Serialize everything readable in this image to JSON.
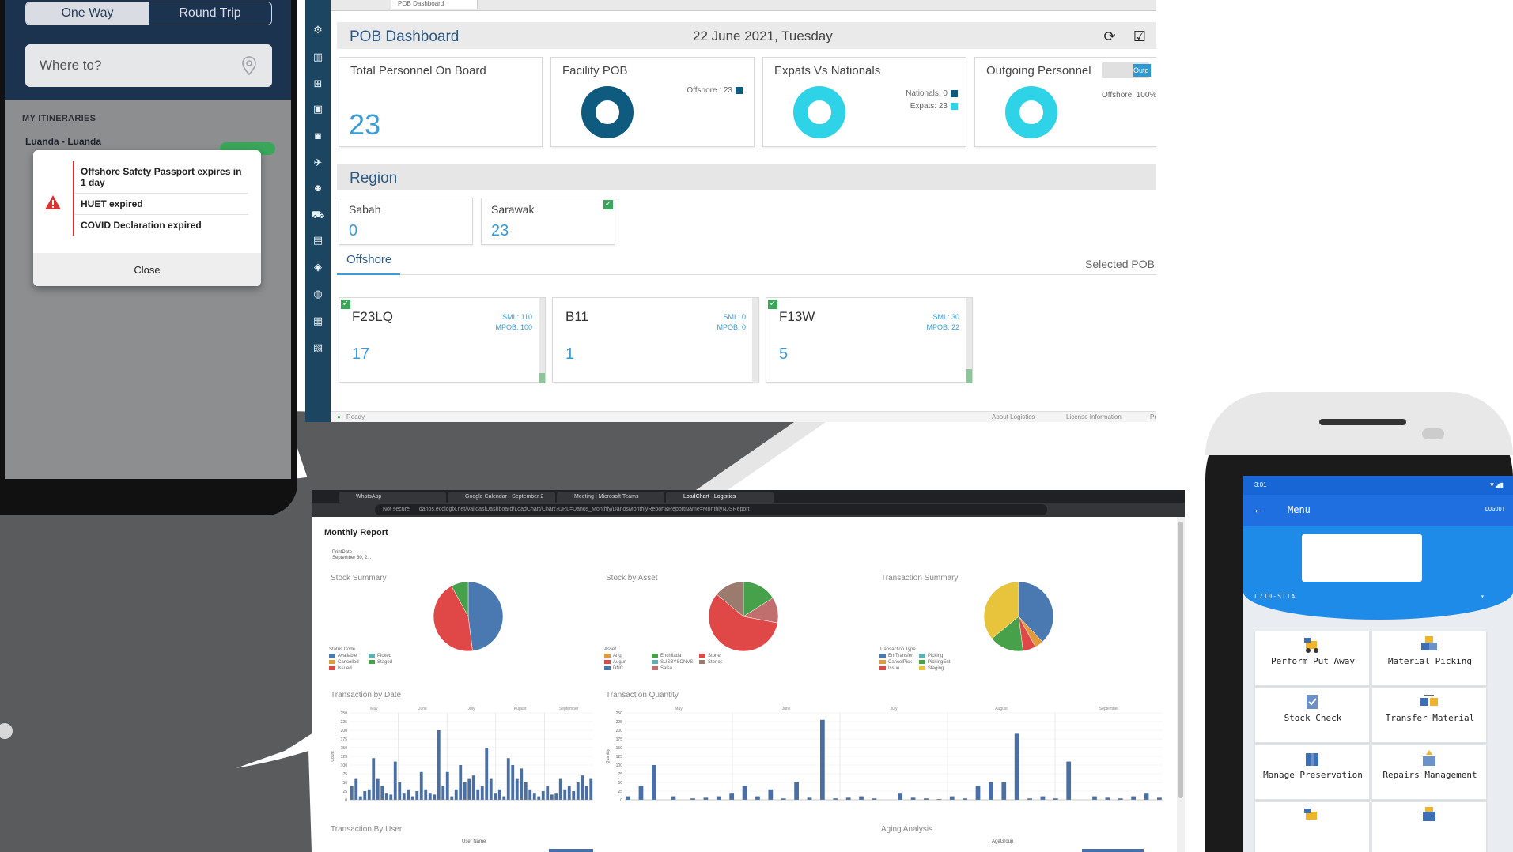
{
  "phone": {
    "toggle": {
      "one_way": "One Way",
      "round_trip": "Round Trip"
    },
    "where_placeholder": "Where to?",
    "section": "MY ITINERARIES",
    "itinerary": "Luanda - Luanda",
    "alerts": [
      "Offshore Safety Passport expires in 1 day",
      "HUET expired",
      "COVID Declaration expired"
    ],
    "close_label": "Close"
  },
  "pob": {
    "tab_label": "POB Dashboard",
    "title": "POB Dashboard",
    "date": "22 June 2021, Tuesday",
    "cards": {
      "total": {
        "label": "Total Personnel On Board",
        "value": "23"
      },
      "facility": {
        "label": "Facility POB",
        "legend": "Offshore : 23"
      },
      "expats": {
        "label": "Expats Vs Nationals",
        "legend_nationals": "Nationals: 0",
        "legend_expats": "Expats: 23"
      },
      "outgoing": {
        "label": "Outgoing Personnel",
        "toggle_label": "Outg",
        "legend": "Offshore: 100%"
      }
    },
    "region_title": "Region",
    "regions": [
      {
        "name": "Sabah",
        "value": "0"
      },
      {
        "name": "Sarawak",
        "value": "23"
      }
    ],
    "tab_offshore": "Offshore",
    "selected_pob": "Selected POB",
    "facilities": [
      {
        "name": "F23LQ",
        "sml": "SML: 110",
        "mpob": "MPOB: 100",
        "value": "17",
        "fill": 0.12
      },
      {
        "name": "B11",
        "sml": "SML: 0",
        "mpob": "MPOB: 0",
        "value": "1",
        "fill": 0
      },
      {
        "name": "F13W",
        "sml": "SML: 30",
        "mpob": "MPOB: 22",
        "value": "5",
        "fill": 0.17
      }
    ],
    "footer": {
      "status": "Ready",
      "links": [
        "About Logistics",
        "License Information",
        "Privacy S"
      ]
    }
  },
  "browser": {
    "tabs": [
      "WhatsApp",
      "Google Calendar - September 2",
      "Meeting | Microsoft Teams",
      "LoadChart - Logistics"
    ],
    "url_prefix": "Not secure",
    "url": "danos.ecologix.net/ValidasiDashboard/LoadChart/Chart?URL=Danos_Monthly/DanosMonthlyReport&ReportName=MonthlyNJSReport",
    "title": "Monthly Report",
    "print_date_label": "PrintDate",
    "print_date": "September 30, 2...",
    "sections": {
      "stock_summary": "Stock Summary",
      "stock_by_asset": "Stock by Asset",
      "transaction_summary": "Transaction Summary",
      "transaction_by_date": "Transaction by Date",
      "transaction_quantity": "Transaction Quantity",
      "transaction_by_user": "Transaction By User",
      "aging_analysis": "Aging Analysis"
    },
    "by_user_axis": "User Name",
    "aging_axis": "AgeGroup",
    "legends": {
      "stock_summary": {
        "title": "Status Code",
        "items": [
          "Available",
          "Cancelled",
          "Issued",
          "Picked",
          "Staged"
        ]
      },
      "stock_by_asset": {
        "title": "Asset",
        "items": [
          "Ang",
          "Augur",
          "DNC",
          "Enchilada",
          "SUSBYSONVS",
          "Salsa",
          "Stone",
          "Stones"
        ]
      },
      "transaction_summary": {
        "title": "Transaction Type",
        "items": [
          "EntTransfer",
          "CancelPick",
          "Issue",
          "Picking",
          "PickingEnt",
          "Staging"
        ]
      }
    },
    "month_labels_date": [
      "May",
      "June",
      "July",
      "August",
      "September"
    ],
    "month_labels_qty": [
      "May",
      "June",
      "July",
      "August",
      "September"
    ],
    "yaxis_date": "Count",
    "yaxis_qty": "Quantity"
  },
  "device": {
    "status_time": "3:01",
    "menu_title": "Menu",
    "logout": "LOGOUT",
    "select_value": "L710-STIA",
    "tiles": [
      "Perform Put Away",
      "Material Picking",
      "Stock Check",
      "Transfer Material",
      "Manage Preservation",
      "Repairs Management"
    ]
  },
  "colors": {
    "navy": "#1c3350",
    "pob_blue": "#3a9bd6",
    "donut_dark": "#0f5a7f",
    "donut_cyan": "#2fd3e8",
    "bar_blue": "#4a6fa5",
    "device_blue": "#1f6fe0"
  },
  "chart_data": [
    {
      "type": "pie",
      "title": "Stock Summary",
      "categories": [
        "Available",
        "Cancelled",
        "Issued",
        "Picked",
        "Staged"
      ],
      "values": [
        48,
        0,
        44,
        0,
        8
      ],
      "colors": [
        "#4a78b0",
        "#e09a3c",
        "#e04848",
        "#5bb1b4",
        "#47a04a"
      ]
    },
    {
      "type": "pie",
      "title": "Stock by Asset",
      "categories": [
        "Ang",
        "Augur",
        "DNC",
        "Enchilada",
        "SUSBYSONVS",
        "Salsa",
        "Stone",
        "Stones"
      ],
      "values": [
        0,
        0,
        0,
        16,
        0,
        12,
        58,
        14
      ],
      "colors": [
        "#e09a3c",
        "#e04848",
        "#4a78b0",
        "#47a04a",
        "#5bb1b4",
        "#c06e6e",
        "#e04848",
        "#9b7b6e"
      ]
    },
    {
      "type": "pie",
      "title": "Transaction Summary",
      "categories": [
        "EntTransfer",
        "CancelPick",
        "Issue",
        "Picking",
        "PickingEnt",
        "Staging"
      ],
      "values": [
        38,
        4,
        6,
        0,
        16,
        36
      ],
      "colors": [
        "#4a78b0",
        "#e09a3c",
        "#e04848",
        "#5bb1b4",
        "#47a04a",
        "#e8c43c"
      ]
    },
    {
      "type": "bar",
      "title": "Transaction by Date",
      "ylabel": "Count",
      "ylim": [
        0,
        250
      ],
      "yticks": [
        0,
        25,
        50,
        75,
        100,
        125,
        150,
        175,
        200,
        225,
        250
      ],
      "values": [
        40,
        60,
        10,
        25,
        30,
        120,
        60,
        40,
        20,
        15,
        110,
        50,
        20,
        30,
        10,
        25,
        80,
        30,
        20,
        15,
        200,
        40,
        80,
        10,
        30,
        100,
        50,
        60,
        70,
        30,
        40,
        150,
        60,
        20,
        30,
        10,
        120,
        100,
        60,
        90,
        50,
        30,
        20,
        10,
        25,
        40,
        15,
        20,
        60,
        30,
        40,
        25,
        50,
        70,
        40,
        60
      ]
    },
    {
      "type": "bar",
      "title": "Transaction Quantity",
      "ylabel": "Quantity",
      "ylim": [
        0,
        250
      ],
      "yticks": [
        0,
        25,
        50,
        75,
        100,
        125,
        150,
        175,
        200,
        225,
        250
      ],
      "values": [
        10,
        0,
        40,
        0,
        100,
        0,
        0,
        10,
        0,
        0,
        4,
        0,
        6,
        0,
        10,
        0,
        20,
        0,
        40,
        0,
        10,
        0,
        30,
        0,
        4,
        0,
        50,
        0,
        6,
        0,
        230,
        0,
        4,
        0,
        6,
        0,
        10,
        0,
        4,
        0,
        0,
        0,
        20,
        0,
        6,
        0,
        4,
        0,
        2,
        0,
        10,
        0,
        4,
        0,
        40,
        0,
        50,
        0,
        50,
        0,
        190,
        0,
        4,
        0,
        10,
        0,
        4,
        0,
        110,
        0,
        0,
        0,
        10,
        0,
        6,
        0,
        4,
        0,
        10,
        0,
        20,
        0,
        6
      ]
    }
  ]
}
